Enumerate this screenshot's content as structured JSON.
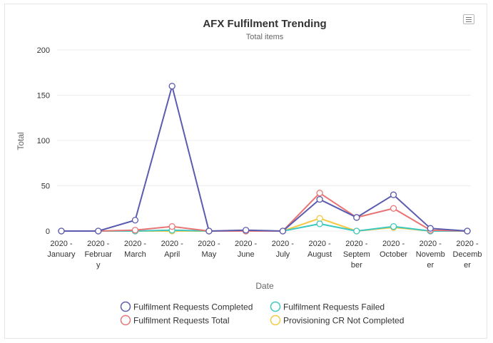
{
  "chart_data": {
    "type": "line",
    "title": "AFX Fulfilment Trending",
    "subtitle": "Total items",
    "xlabel": "Date",
    "ylabel": "Total",
    "ylim": [
      0,
      200
    ],
    "yticks": [
      "0",
      "50",
      "100",
      "150",
      "200"
    ],
    "categories": [
      [
        "2020 -",
        "January"
      ],
      [
        "2020 -",
        "Februar",
        "y"
      ],
      [
        "2020 -",
        "March"
      ],
      [
        "2020 -",
        "April"
      ],
      [
        "2020 -",
        "May"
      ],
      [
        "2020 -",
        "June"
      ],
      [
        "2020 -",
        "July"
      ],
      [
        "2020 -",
        "August"
      ],
      [
        "2020 -",
        "Septem",
        "ber"
      ],
      [
        "2020 -",
        "October"
      ],
      [
        "2020 -",
        "Novemb",
        "er"
      ],
      [
        "2020 -",
        "Decemb",
        "er"
      ]
    ],
    "series": [
      {
        "name": "Fulfilment Requests Completed",
        "color": "#5c5caf",
        "values": [
          0,
          0,
          12,
          160,
          0,
          1,
          0,
          35,
          15,
          40,
          3,
          0
        ]
      },
      {
        "name": "Fulfilment Requests Total",
        "color": "#e87474",
        "values": [
          0,
          0,
          1,
          5,
          0,
          0,
          0,
          42,
          15,
          25,
          1,
          0
        ]
      },
      {
        "name": "Fulfilment Requests Failed",
        "color": "#3cc8c0",
        "values": [
          0,
          0,
          0,
          1,
          0,
          0,
          0,
          8,
          0,
          5,
          0,
          0
        ]
      },
      {
        "name": "Provisioning CR Not Completed",
        "color": "#f5c842",
        "values": [
          0,
          0,
          0,
          0,
          0,
          0,
          0,
          14,
          0,
          4,
          0,
          0
        ]
      }
    ],
    "legend": {
      "position": "bottom",
      "items": [
        {
          "name": "Fulfilment Requests Completed",
          "color": "#5c5caf"
        },
        {
          "name": "Fulfilment Requests Failed",
          "color": "#3cc8c0"
        },
        {
          "name": "Fulfilment Requests Total",
          "color": "#e87474"
        },
        {
          "name": "Provisioning CR Not Completed",
          "color": "#f5c842"
        }
      ]
    }
  },
  "menu_icon": "hamburger-menu-icon"
}
